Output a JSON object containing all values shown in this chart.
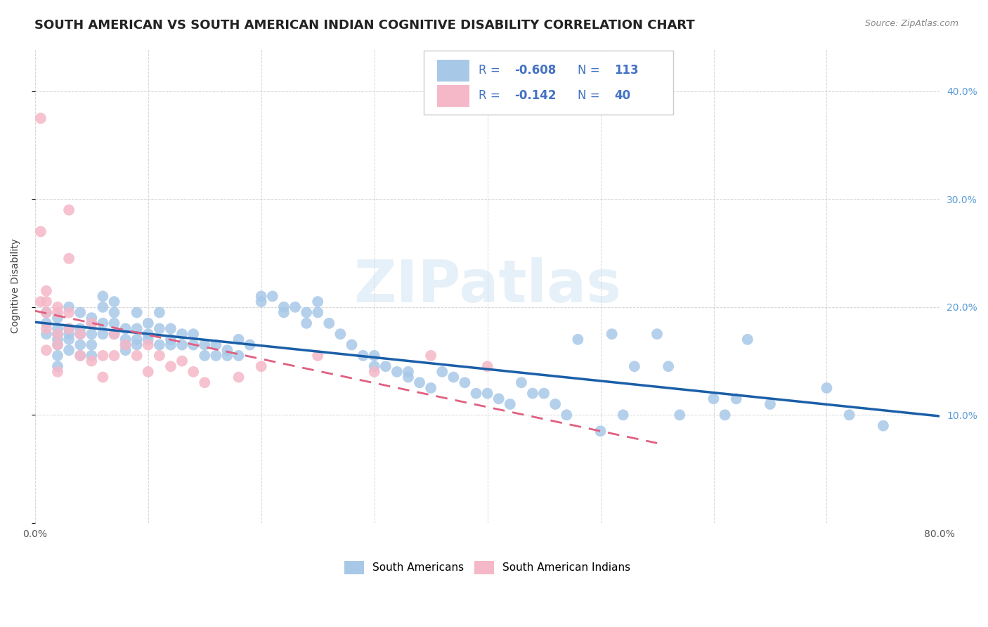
{
  "title": "SOUTH AMERICAN VS SOUTH AMERICAN INDIAN COGNITIVE DISABILITY CORRELATION CHART",
  "source": "Source: ZipAtlas.com",
  "ylabel": "Cognitive Disability",
  "xlim": [
    0.0,
    0.8
  ],
  "ylim": [
    0.0,
    0.44
  ],
  "xtick_vals": [
    0.0,
    0.1,
    0.2,
    0.3,
    0.4,
    0.5,
    0.6,
    0.7,
    0.8
  ],
  "xtick_labels": [
    "0.0%",
    "",
    "",
    "",
    "",
    "",
    "",
    "",
    "80.0%"
  ],
  "ytick_vals_right": [
    0.1,
    0.2,
    0.3,
    0.4
  ],
  "ytick_labels_right": [
    "10.0%",
    "20.0%",
    "30.0%",
    "40.0%"
  ],
  "blue_R": "-0.608",
  "blue_N": "113",
  "pink_R": "-0.142",
  "pink_N": "40",
  "blue_color": "#a8c8e8",
  "pink_color": "#f5b8c8",
  "blue_line_color": "#1a5fa8",
  "pink_line_color": "#e06080",
  "watermark": "ZIPatlas",
  "legend_label_blue": "South Americans",
  "legend_label_pink": "South American Indians",
  "blue_scatter_x": [
    0.01,
    0.01,
    0.01,
    0.02,
    0.02,
    0.02,
    0.02,
    0.02,
    0.02,
    0.02,
    0.03,
    0.03,
    0.03,
    0.03,
    0.03,
    0.04,
    0.04,
    0.04,
    0.04,
    0.04,
    0.05,
    0.05,
    0.05,
    0.05,
    0.05,
    0.06,
    0.06,
    0.06,
    0.06,
    0.07,
    0.07,
    0.07,
    0.07,
    0.08,
    0.08,
    0.08,
    0.08,
    0.09,
    0.09,
    0.09,
    0.09,
    0.1,
    0.1,
    0.1,
    0.11,
    0.11,
    0.11,
    0.12,
    0.12,
    0.12,
    0.13,
    0.13,
    0.14,
    0.14,
    0.15,
    0.15,
    0.16,
    0.16,
    0.17,
    0.17,
    0.18,
    0.18,
    0.19,
    0.2,
    0.2,
    0.21,
    0.22,
    0.22,
    0.23,
    0.24,
    0.24,
    0.25,
    0.25,
    0.26,
    0.27,
    0.28,
    0.29,
    0.3,
    0.3,
    0.31,
    0.32,
    0.33,
    0.33,
    0.34,
    0.35,
    0.36,
    0.37,
    0.38,
    0.39,
    0.4,
    0.41,
    0.42,
    0.43,
    0.44,
    0.45,
    0.46,
    0.47,
    0.48,
    0.5,
    0.51,
    0.52,
    0.53,
    0.55,
    0.56,
    0.57,
    0.6,
    0.61,
    0.62,
    0.63,
    0.65,
    0.7,
    0.72,
    0.75
  ],
  "blue_scatter_y": [
    0.195,
    0.185,
    0.175,
    0.19,
    0.18,
    0.175,
    0.17,
    0.165,
    0.155,
    0.145,
    0.2,
    0.18,
    0.175,
    0.17,
    0.16,
    0.195,
    0.18,
    0.175,
    0.165,
    0.155,
    0.19,
    0.185,
    0.175,
    0.165,
    0.155,
    0.21,
    0.2,
    0.185,
    0.175,
    0.205,
    0.195,
    0.185,
    0.175,
    0.18,
    0.17,
    0.165,
    0.16,
    0.195,
    0.18,
    0.17,
    0.165,
    0.185,
    0.175,
    0.17,
    0.195,
    0.18,
    0.165,
    0.18,
    0.17,
    0.165,
    0.175,
    0.165,
    0.175,
    0.165,
    0.165,
    0.155,
    0.165,
    0.155,
    0.16,
    0.155,
    0.17,
    0.155,
    0.165,
    0.21,
    0.205,
    0.21,
    0.2,
    0.195,
    0.2,
    0.195,
    0.185,
    0.205,
    0.195,
    0.185,
    0.175,
    0.165,
    0.155,
    0.155,
    0.145,
    0.145,
    0.14,
    0.14,
    0.135,
    0.13,
    0.125,
    0.14,
    0.135,
    0.13,
    0.12,
    0.12,
    0.115,
    0.11,
    0.13,
    0.12,
    0.12,
    0.11,
    0.1,
    0.17,
    0.085,
    0.175,
    0.1,
    0.145,
    0.175,
    0.145,
    0.1,
    0.115,
    0.1,
    0.115,
    0.17,
    0.11,
    0.125,
    0.1,
    0.09
  ],
  "pink_scatter_x": [
    0.005,
    0.005,
    0.005,
    0.01,
    0.01,
    0.01,
    0.01,
    0.01,
    0.02,
    0.02,
    0.02,
    0.02,
    0.02,
    0.03,
    0.03,
    0.03,
    0.03,
    0.04,
    0.04,
    0.05,
    0.05,
    0.06,
    0.06,
    0.07,
    0.07,
    0.08,
    0.09,
    0.1,
    0.1,
    0.11,
    0.12,
    0.13,
    0.14,
    0.15,
    0.18,
    0.2,
    0.25,
    0.3,
    0.35,
    0.4
  ],
  "pink_scatter_y": [
    0.375,
    0.27,
    0.205,
    0.215,
    0.205,
    0.195,
    0.18,
    0.16,
    0.2,
    0.195,
    0.175,
    0.165,
    0.14,
    0.29,
    0.245,
    0.195,
    0.18,
    0.175,
    0.155,
    0.185,
    0.15,
    0.155,
    0.135,
    0.175,
    0.155,
    0.165,
    0.155,
    0.165,
    0.14,
    0.155,
    0.145,
    0.15,
    0.14,
    0.13,
    0.135,
    0.145,
    0.155,
    0.14,
    0.155,
    0.145
  ],
  "background_color": "#ffffff",
  "grid_color": "#cccccc",
  "title_fontsize": 13,
  "axis_fontsize": 10,
  "tick_fontsize": 10
}
